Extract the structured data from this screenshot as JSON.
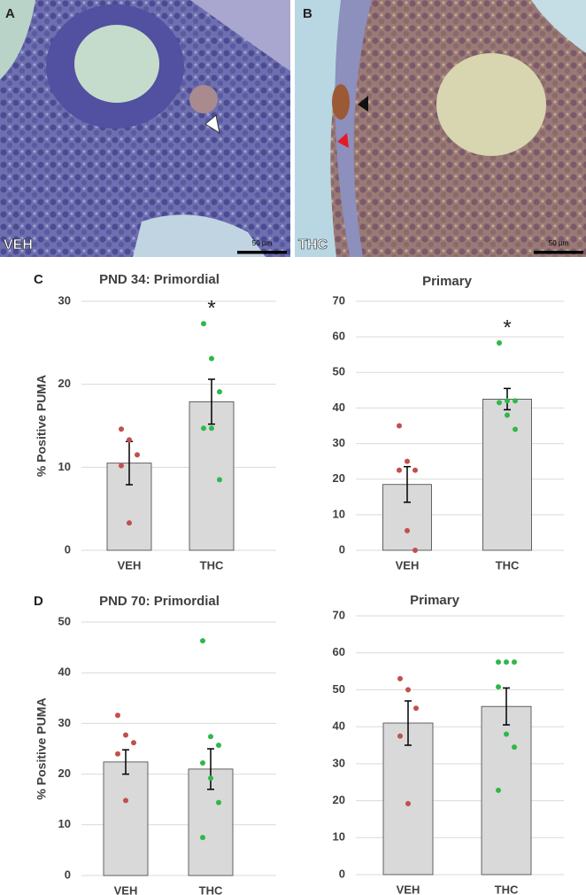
{
  "panels": [
    {
      "label": "A",
      "condition": "VEH",
      "scale": "50 µm"
    },
    {
      "label": "B",
      "condition": "THC",
      "scale": "50 µm"
    }
  ],
  "panel_labels": [
    "C",
    "D"
  ],
  "chart_data": [
    {
      "type": "bar",
      "title": "PND 34: Primordial",
      "ylabel": "% Positive PUMA",
      "categories": [
        "VEH",
        "THC"
      ],
      "values": [
        10.5,
        17.9
      ],
      "errors": [
        2.6,
        2.7
      ],
      "points": [
        [
          14.6,
          13.3,
          11.5,
          10.2,
          3.3
        ],
        [
          27.3,
          23.1,
          19.1,
          14.7,
          14.7,
          8.5
        ]
      ],
      "point_colors": [
        "#c0504d",
        "#2eb84a"
      ],
      "significance": [
        null,
        "*"
      ],
      "color": "#d9d9d9",
      "ylim": [
        0,
        30
      ],
      "yticks": [
        0,
        10,
        20,
        30
      ],
      "grid": true
    },
    {
      "type": "bar",
      "title": "Primary",
      "categories": [
        "VEH",
        "THC"
      ],
      "values": [
        18.5,
        42.5
      ],
      "errors": [
        5.0,
        3.0
      ],
      "points": [
        [
          35,
          25,
          22.5,
          22.5,
          5.5,
          0
        ],
        [
          58.3,
          42,
          42,
          41.5,
          38,
          34
        ]
      ],
      "point_colors": [
        "#c0504d",
        "#2eb84a"
      ],
      "significance": [
        null,
        "*"
      ],
      "color": "#d9d9d9",
      "ylim": [
        0,
        70
      ],
      "yticks": [
        0,
        10,
        20,
        30,
        40,
        50,
        60,
        70
      ],
      "grid": true
    },
    {
      "type": "bar",
      "title": "PND 70: Primordial",
      "ylabel": "% Positive PUMA",
      "categories": [
        "VEH",
        "THC"
      ],
      "values": [
        22.4,
        21.0
      ],
      "errors": [
        2.4,
        4.0
      ],
      "points": [
        [
          31.6,
          27.7,
          26.2,
          24,
          14.8
        ],
        [
          46.3,
          27.4,
          25.7,
          22.2,
          19.2,
          14.4,
          7.5
        ]
      ],
      "point_colors": [
        "#c0504d",
        "#2eb84a"
      ],
      "color": "#d9d9d9",
      "ylim": [
        0,
        50
      ],
      "yticks": [
        0,
        10,
        20,
        30,
        40,
        50
      ],
      "grid": true
    },
    {
      "type": "bar",
      "title": "Primary",
      "categories": [
        "VEH",
        "THC"
      ],
      "values": [
        41.0,
        45.5
      ],
      "errors": [
        6.0,
        5.0
      ],
      "points": [
        [
          53,
          50,
          45,
          37.5,
          19.2
        ],
        [
          57.5,
          57.5,
          57.5,
          50.8,
          38,
          34.5,
          22.8
        ]
      ],
      "point_colors": [
        "#c0504d",
        "#2eb84a"
      ],
      "color": "#d9d9d9",
      "ylim": [
        0,
        70
      ],
      "yticks": [
        0,
        10,
        20,
        30,
        40,
        50,
        60,
        70
      ],
      "grid": true
    }
  ]
}
